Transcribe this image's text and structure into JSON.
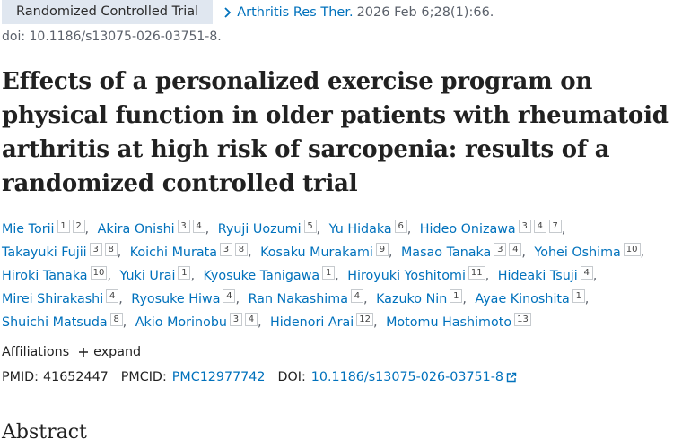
{
  "citation": {
    "article_type": "Randomized Controlled Trial",
    "journal": "Arthritis Res Ther.",
    "date": "2026 Feb 6;28(1):66.",
    "doi": "doi: 10.1186/s13075-026-03751-8."
  },
  "title": "Effects of a personalized exercise program on physical function in older patients with rheumatoid arthritis at high risk of sarcopenia: results of a randomized controlled trial",
  "authors": [
    {
      "name": "Mie Torii",
      "affiliations": [
        1,
        2
      ]
    },
    {
      "name": "Akira Onishi",
      "affiliations": [
        3,
        4
      ]
    },
    {
      "name": "Ryuji Uozumi",
      "affiliations": [
        5
      ]
    },
    {
      "name": "Yu Hidaka",
      "affiliations": [
        6
      ]
    },
    {
      "name": "Hideo Onizawa",
      "affiliations": [
        3,
        4,
        7
      ]
    },
    {
      "name": "Takayuki Fujii",
      "affiliations": [
        3,
        8
      ]
    },
    {
      "name": "Koichi Murata",
      "affiliations": [
        3,
        8
      ]
    },
    {
      "name": "Kosaku Murakami",
      "affiliations": [
        9
      ]
    },
    {
      "name": "Masao Tanaka",
      "affiliations": [
        3,
        4
      ]
    },
    {
      "name": "Yohei Oshima",
      "affiliations": [
        10
      ]
    },
    {
      "name": "Hiroki Tanaka",
      "affiliations": [
        10
      ]
    },
    {
      "name": "Yuki Urai",
      "affiliations": [
        1
      ]
    },
    {
      "name": "Kyosuke Tanigawa",
      "affiliations": [
        1
      ]
    },
    {
      "name": "Hiroyuki Yoshitomi",
      "affiliations": [
        11
      ]
    },
    {
      "name": "Hideaki Tsuji",
      "affiliations": [
        4
      ]
    },
    {
      "name": "Mirei Shirakashi",
      "affiliations": [
        4
      ]
    },
    {
      "name": "Ryosuke Hiwa",
      "affiliations": [
        4
      ]
    },
    {
      "name": "Ran Nakashima",
      "affiliations": [
        4
      ]
    },
    {
      "name": "Kazuko Nin",
      "affiliations": [
        1
      ]
    },
    {
      "name": "Ayae Kinoshita",
      "affiliations": [
        1
      ]
    },
    {
      "name": "Shuichi Matsuda",
      "affiliations": [
        8
      ]
    },
    {
      "name": "Akio Morinobu",
      "affiliations": [
        3,
        4
      ]
    },
    {
      "name": "Hidenori Arai",
      "affiliations": [
        12
      ]
    },
    {
      "name": "Motomu Hashimoto",
      "affiliations": [
        13
      ]
    }
  ],
  "affiliations_toggle": {
    "label": "Affiliations",
    "action": "expand"
  },
  "identifiers": {
    "pmid_label": "PMID:",
    "pmid": "41652447",
    "pmcid_label": "PMCID:",
    "pmcid": "PMC12977742",
    "doi_label": "DOI:",
    "doi": "10.1186/s13075-026-03751-8"
  },
  "abstract_heading": "Abstract"
}
